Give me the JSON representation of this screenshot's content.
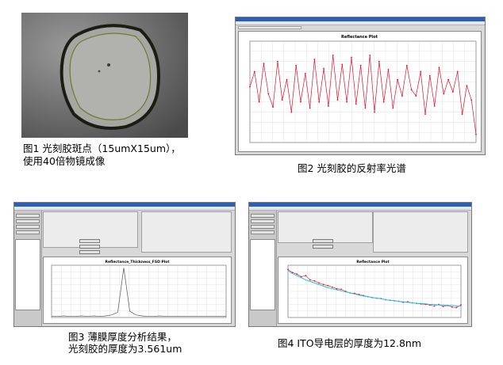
{
  "figures": {
    "fig1": {
      "caption_line1": "图1 光刻胶斑点（15umX15um），",
      "caption_line2": "使用40倍物镜成像"
    },
    "fig2": {
      "caption": "图2 光刻胶的反射率光谱",
      "plot_title": "Reflectance Plot"
    },
    "fig3": {
      "caption_line1": "图3 薄膜厚度分析结果，",
      "caption_line2": "光刻胶的厚度为3.561um",
      "plot_title": "Reflectance_Thickness_FSD Plot"
    },
    "fig4": {
      "caption": "图4 ITO导电层的厚度为12.8nm",
      "plot_title": "Reflectance Plot"
    }
  },
  "colors": {
    "curve_red": "#e0102a",
    "fit_cyan": "#19c7e6",
    "spike_gray": "#555555"
  },
  "chart_data": [
    {
      "type": "line",
      "title": "Reflectance Plot",
      "series": [
        {
          "values": [
            0.55,
            0.7,
            0.4,
            0.78,
            0.48,
            0.35,
            0.8,
            0.42,
            0.62,
            0.3,
            0.76,
            0.4,
            0.68,
            0.34,
            0.82,
            0.4,
            0.73,
            0.36,
            0.86,
            0.42,
            0.77,
            0.4,
            0.84,
            0.38,
            0.76,
            0.34,
            0.86,
            0.3,
            0.8,
            0.4,
            0.72,
            0.34,
            0.62,
            0.46,
            0.76,
            0.52,
            0.46,
            0.7,
            0.28,
            0.66,
            0.36,
            0.74,
            0.48,
            0.62,
            0.5,
            0.7,
            0.28,
            0.56,
            0.42,
            0.08
          ]
        }
      ]
    },
    {
      "type": "line",
      "title": "Reflectance_Thickness_FSD Plot",
      "series": [
        {
          "values": [
            0.02,
            0.02,
            0.03,
            0.02,
            0.02,
            0.03,
            0.02,
            0.03,
            0.02,
            0.03,
            0.05,
            0.1,
            0.95,
            0.12,
            0.05,
            0.03,
            0.02,
            0.02,
            0.03,
            0.02,
            0.02,
            0.02,
            0.02,
            0.02,
            0.02,
            0.02,
            0.02,
            0.02,
            0.02,
            0.02
          ]
        }
      ]
    },
    {
      "type": "line",
      "title": "Reflectance Plot",
      "series": [
        {
          "values": [
            0.92,
            0.86,
            0.83,
            0.78,
            0.8,
            0.72,
            0.7,
            0.66,
            0.63,
            0.61,
            0.58,
            0.55,
            0.54,
            0.5,
            0.47,
            0.46,
            0.44,
            0.42,
            0.4,
            0.38,
            0.37,
            0.36,
            0.34,
            0.33,
            0.32,
            0.31,
            0.29,
            0.3,
            0.28,
            0.27,
            0.26,
            0.25,
            0.24,
            0.22,
            0.25,
            0.21,
            0.23,
            0.2,
            0.19,
            0.24
          ]
        },
        {
          "values": [
            0.9,
            0.84,
            0.8,
            0.76,
            0.72,
            0.69,
            0.66,
            0.63,
            0.6,
            0.57,
            0.55,
            0.53,
            0.51,
            0.49,
            0.47,
            0.45,
            0.43,
            0.41,
            0.4,
            0.38,
            0.37,
            0.36,
            0.34,
            0.33,
            0.32,
            0.31,
            0.3,
            0.29,
            0.28,
            0.27,
            0.27,
            0.26,
            0.25,
            0.25,
            0.24,
            0.24,
            0.23,
            0.23,
            0.22,
            0.22
          ]
        }
      ]
    }
  ]
}
